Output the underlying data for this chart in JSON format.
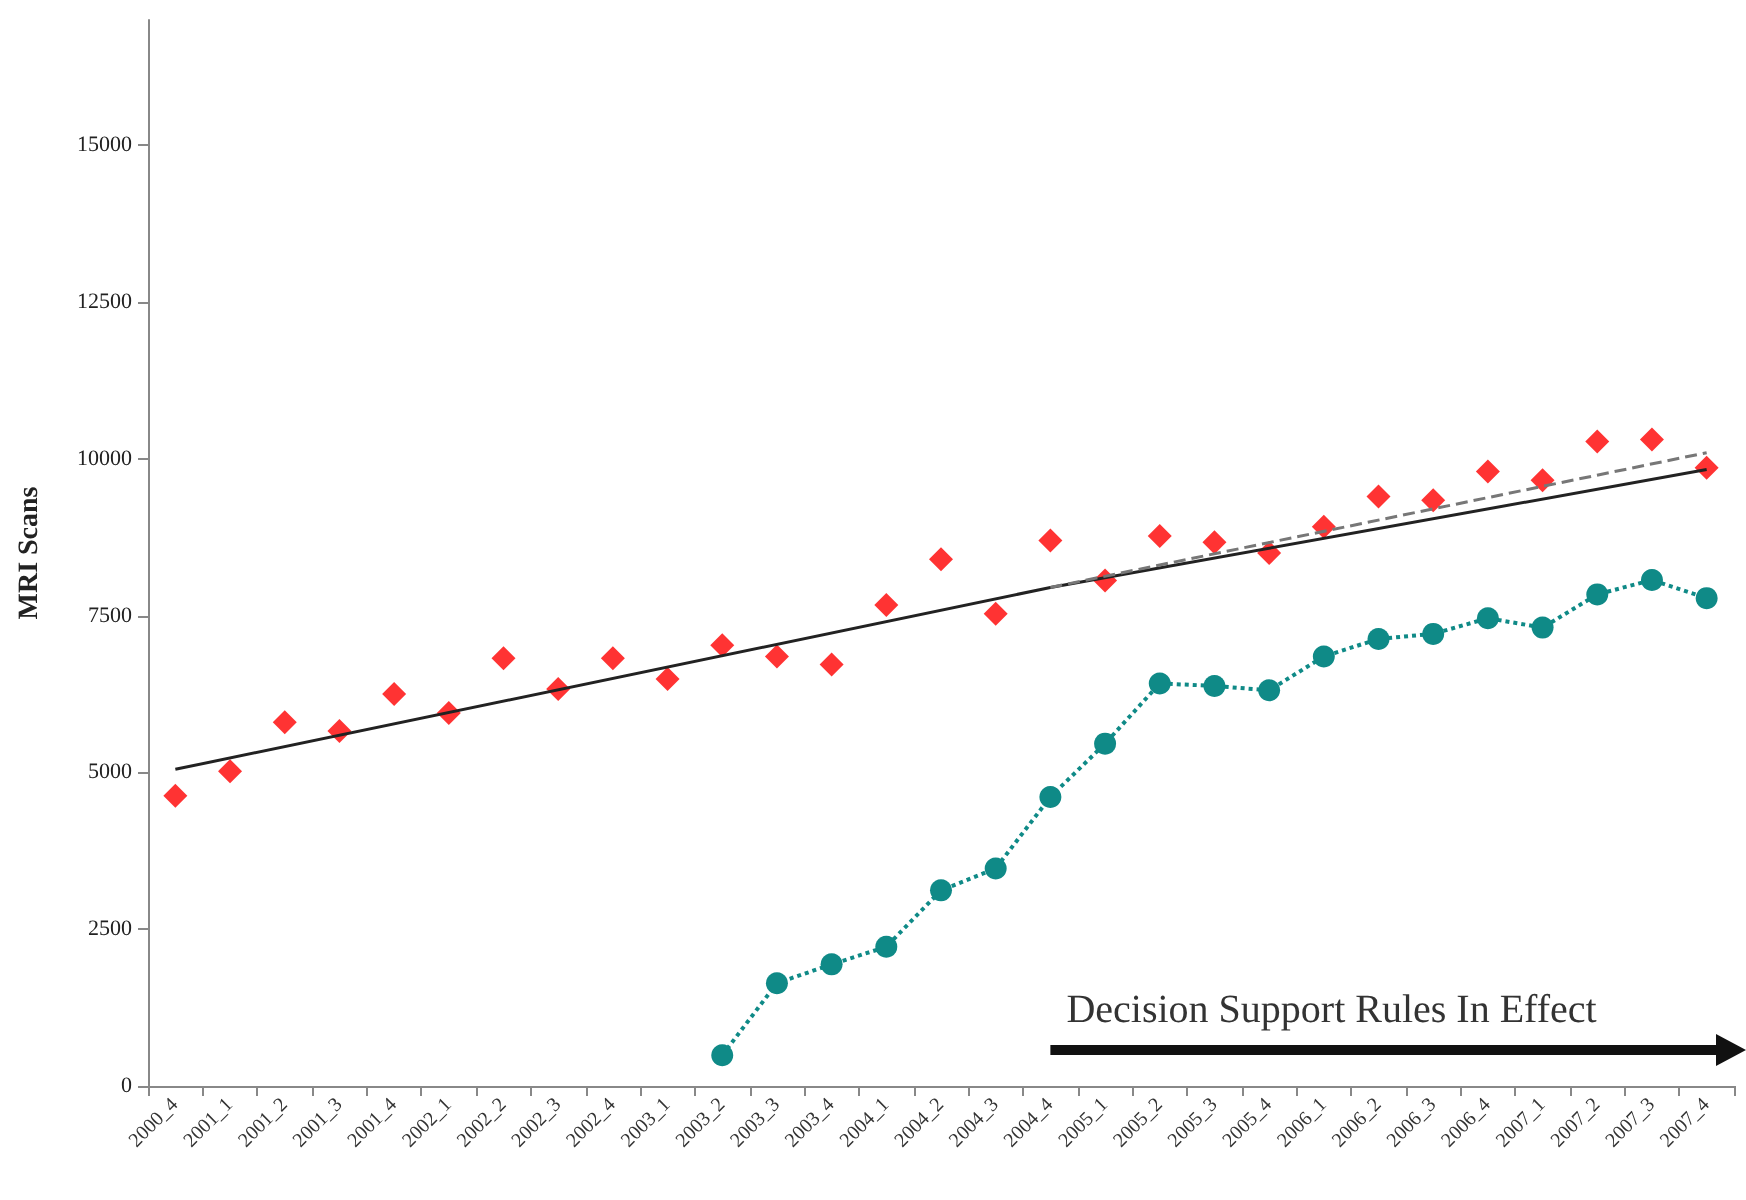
{
  "chart_data": {
    "type": "scatter",
    "ylabel": "MRI Scans",
    "categories": [
      "2000_4",
      "2001_1",
      "2001_2",
      "2001_3",
      "2001_4",
      "2002_1",
      "2002_2",
      "2002_3",
      "2002_4",
      "2003_1",
      "2003_2",
      "2003_3",
      "2003_4",
      "2004_1",
      "2004_2",
      "2004_3",
      "2004_4",
      "2005_1",
      "2005_2",
      "2005_3",
      "2005_4",
      "2006_1",
      "2006_2",
      "2006_3",
      "2006_4",
      "2007_1",
      "2007_2",
      "2007_3",
      "2007_4"
    ],
    "series": [
      {
        "color": "#ff0000",
        "marker": "diamond",
        "values": [
          4630,
          5020,
          5800,
          5660,
          6250,
          5950,
          6820,
          6330,
          6820,
          6490,
          7030,
          6850,
          6720,
          7670,
          8400,
          7530,
          8700,
          8060,
          8770,
          8670,
          8500,
          8920,
          9400,
          9340,
          9800,
          9660,
          10280,
          10310,
          9860
        ]
      },
      {
        "type": "line",
        "color": "#0f8a87",
        "marker": "circle",
        "line_style": "dotted",
        "values": [
          null,
          null,
          null,
          null,
          null,
          null,
          null,
          null,
          null,
          null,
          490,
          1640,
          1940,
          2220,
          3120,
          3470,
          4610,
          5460,
          6420,
          6380,
          6310,
          6850,
          7130,
          7210,
          7460,
          7310,
          7840,
          8070,
          7780
        ]
      },
      {
        "type": "line",
        "color": "#222222",
        "marker": "none",
        "line_style": "solid",
        "values": [
          5050,
          null,
          null,
          null,
          null,
          null,
          null,
          null,
          null,
          null,
          null,
          null,
          null,
          null,
          null,
          null,
          7950,
          null,
          null,
          null,
          null,
          null,
          null,
          null,
          null,
          null,
          null,
          null,
          9830
        ]
      },
      {
        "type": "line",
        "color": "#777777",
        "marker": "none",
        "line_style": "dashed",
        "values": [
          null,
          null,
          null,
          null,
          null,
          null,
          null,
          null,
          null,
          null,
          null,
          null,
          null,
          null,
          null,
          null,
          7950,
          null,
          null,
          null,
          null,
          null,
          null,
          null,
          null,
          null,
          null,
          null,
          10100
        ]
      }
    ],
    "ylim": [
      0,
      17000
    ],
    "yticks": [
      0,
      2500,
      5000,
      7500,
      10000,
      12500,
      15000
    ],
    "annotations": [
      "Decision Support Rules In Effect"
    ]
  }
}
